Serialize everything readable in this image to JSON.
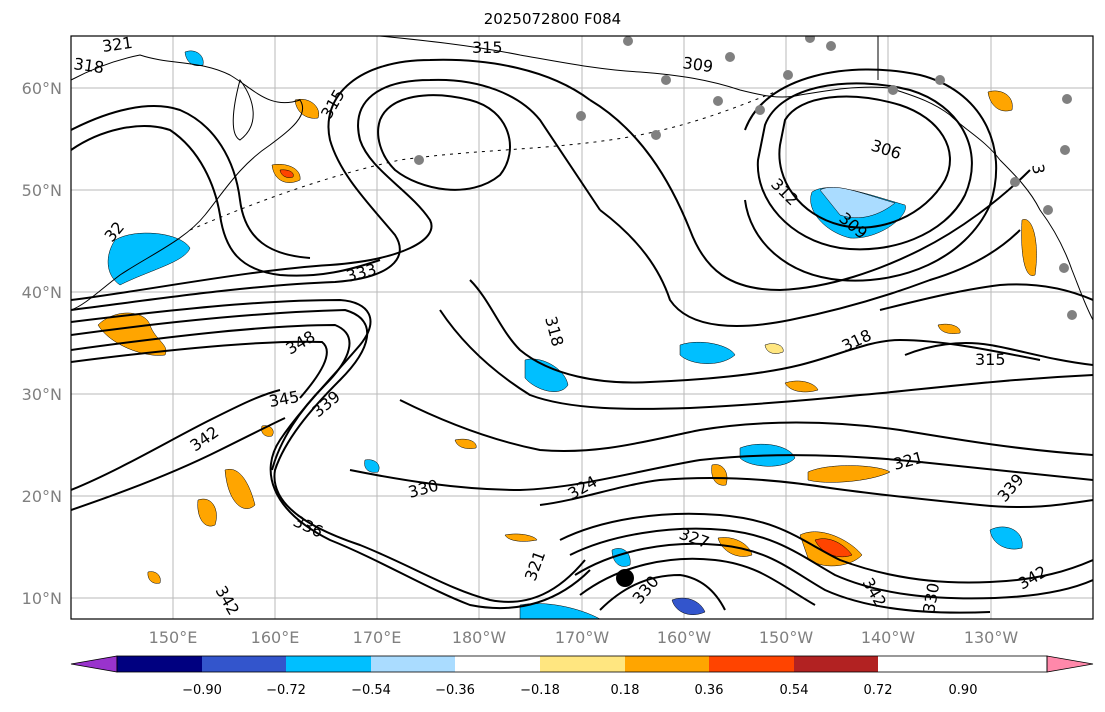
{
  "title": "2025072800 F084",
  "map": {
    "lon_labels": [
      "150°E",
      "160°E",
      "170°E",
      "180°W",
      "170°W",
      "160°W",
      "150°W",
      "140°W",
      "130°W"
    ],
    "lat_labels": [
      "60°N",
      "50°N",
      "40°N",
      "30°N",
      "20°N",
      "10°N"
    ],
    "contour_labels": [
      "321",
      "318",
      "315",
      "309",
      "315",
      "306",
      "312",
      "309",
      "333",
      "318",
      "318",
      "315",
      "348",
      "345",
      "339",
      "342",
      "330",
      "324",
      "321",
      "336",
      "321",
      "342",
      "330",
      "339",
      "342",
      "342",
      "330",
      "32",
      "3",
      "327"
    ],
    "colors": {
      "land_line": "#000000",
      "contour": "#000000",
      "grid": "#9e9e9e",
      "station": "#808080",
      "storm_center": "#000000"
    }
  },
  "colorbar": {
    "ticks": [
      "−0.90",
      "−0.72",
      "−0.54",
      "−0.36",
      "−0.18",
      "0.18",
      "0.36",
      "0.54",
      "0.72",
      "0.90"
    ],
    "colors": [
      "#9933cc",
      "#000080",
      "#3355cc",
      "#00bfff",
      "#aadcff",
      "#ffffff",
      "#ffe680",
      "#ffa500",
      "#ff4400",
      "#b22222",
      "#ff88aa"
    ]
  }
}
